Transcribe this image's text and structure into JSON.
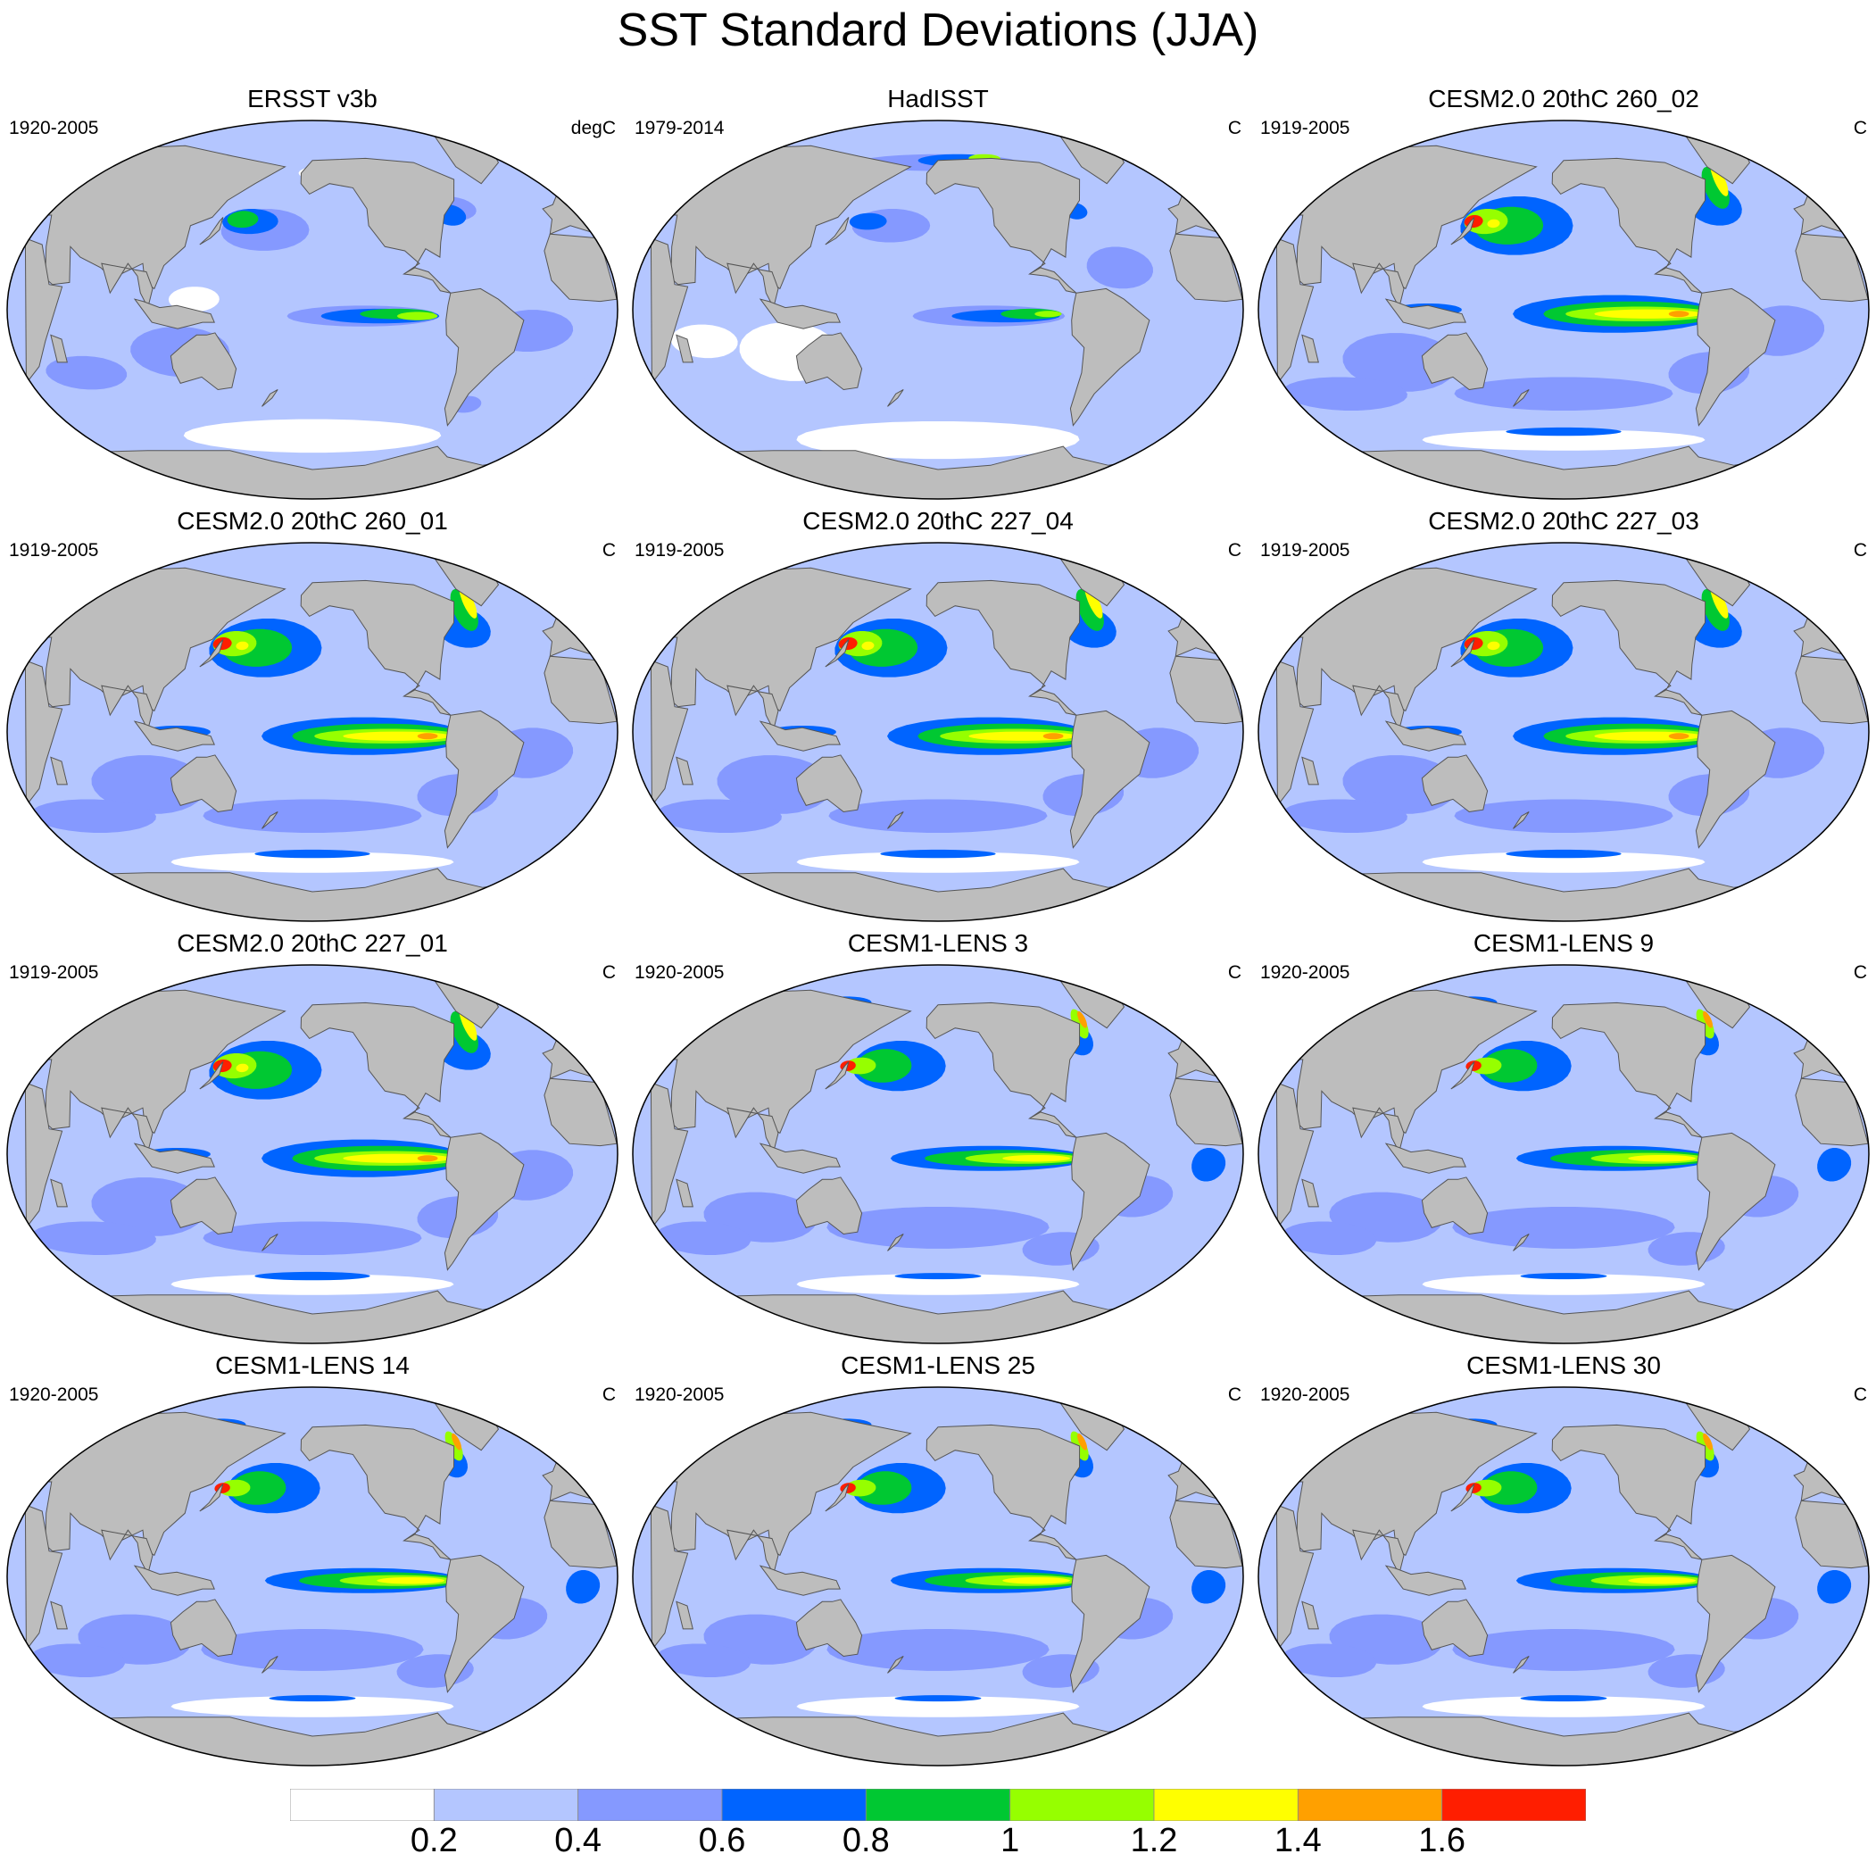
{
  "title": "SST Standard Deviations (JJA)",
  "colors": {
    "land": "#bdbdbd",
    "scale": [
      "#ffffff",
      "#b4c6ff",
      "#8599ff",
      "#0064ff",
      "#00c832",
      "#96ff00",
      "#ffff00",
      "#ffa000",
      "#ff1e00"
    ]
  },
  "panels": [
    {
      "title": "ERSST v3b",
      "period": "1920-2005",
      "units": "degC",
      "pattern": "obs_er"
    },
    {
      "title": "HadISST",
      "period": "1979-2014",
      "units": "C",
      "pattern": "obs_had"
    },
    {
      "title": "CESM2.0 20thC 260_02",
      "period": "1919-2005",
      "units": "C",
      "pattern": "cesm2"
    },
    {
      "title": "CESM2.0 20thC 260_01",
      "period": "1919-2005",
      "units": "C",
      "pattern": "cesm2"
    },
    {
      "title": "CESM2.0 20thC 227_04",
      "period": "1919-2005",
      "units": "C",
      "pattern": "cesm2"
    },
    {
      "title": "CESM2.0 20thC 227_03",
      "period": "1919-2005",
      "units": "C",
      "pattern": "cesm2"
    },
    {
      "title": "CESM2.0 20thC 227_01",
      "period": "1919-2005",
      "units": "C",
      "pattern": "cesm2"
    },
    {
      "title": "CESM1-LENS 3",
      "period": "1920-2005",
      "units": "C",
      "pattern": "lens"
    },
    {
      "title": "CESM1-LENS 9",
      "period": "1920-2005",
      "units": "C",
      "pattern": "lens"
    },
    {
      "title": "CESM1-LENS 14",
      "period": "1920-2005",
      "units": "C",
      "pattern": "lens"
    },
    {
      "title": "CESM1-LENS 25",
      "period": "1920-2005",
      "units": "C",
      "pattern": "lens"
    },
    {
      "title": "CESM1-LENS 30",
      "period": "1920-2005",
      "units": "C",
      "pattern": "lens"
    }
  ],
  "colorbar": {
    "labels": [
      "0.2",
      "0.4",
      "0.6",
      "0.8",
      "1",
      "1.2",
      "1.4",
      "1.6"
    ]
  }
}
